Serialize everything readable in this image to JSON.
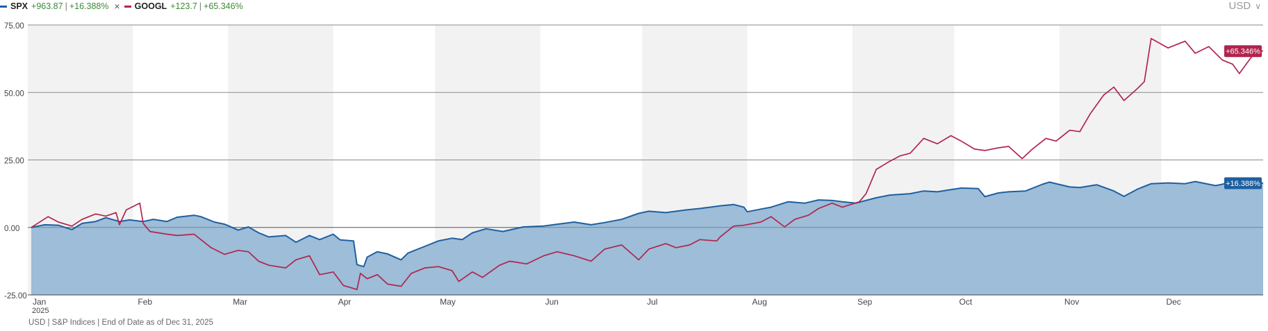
{
  "legend": {
    "items": [
      {
        "symbol": "SPX",
        "value": "+963.87",
        "pct": "+16.388%",
        "color": "#1e5fa0"
      },
      {
        "symbol": "GOOGL",
        "value": "+123.7",
        "pct": "+65.346%",
        "color": "#b1244d"
      }
    ],
    "separator": "|",
    "remove_icon": "close-icon"
  },
  "currency": {
    "label": "USD",
    "icon": "chevron-down-icon"
  },
  "footnote": "USD | S&P Indices | End of Date as of Dec 31, 2025",
  "chart_data": {
    "type": "area",
    "x_labels": [
      "Jan",
      "Feb",
      "Mar",
      "Apr",
      "May",
      "Jun",
      "Jul",
      "Aug",
      "Sep",
      "Oct",
      "Nov",
      "Dec"
    ],
    "x_sublabel": "2025",
    "y_ticks": [
      "75.00",
      "50.00",
      "25.00",
      "0.00",
      "-25.00"
    ],
    "ylim": [
      -25,
      75
    ],
    "units": "percent change",
    "series": [
      {
        "name": "SPX",
        "style": "area",
        "color": "#1e5fa0",
        "fill": "#98b9d6",
        "end_label": "+16.388%",
        "points": [
          [
            "2025-01-02",
            0
          ],
          [
            "2025-01-06",
            1.0
          ],
          [
            "2025-01-10",
            0.8
          ],
          [
            "2025-01-14",
            -0.8
          ],
          [
            "2025-01-17",
            1.5
          ],
          [
            "2025-01-21",
            2.2
          ],
          [
            "2025-01-24",
            3.6
          ],
          [
            "2025-01-28",
            2.2
          ],
          [
            "2025-01-31",
            2.8
          ],
          [
            "2025-02-04",
            2.2
          ],
          [
            "2025-02-07",
            3.0
          ],
          [
            "2025-02-11",
            2.2
          ],
          [
            "2025-02-14",
            3.8
          ],
          [
            "2025-02-19",
            4.5
          ],
          [
            "2025-02-21",
            4.0
          ],
          [
            "2025-02-25",
            2.0
          ],
          [
            "2025-02-28",
            1.2
          ],
          [
            "2025-03-04",
            -1.0
          ],
          [
            "2025-03-07",
            0.2
          ],
          [
            "2025-03-10",
            -2.0
          ],
          [
            "2025-03-13",
            -3.5
          ],
          [
            "2025-03-18",
            -3.0
          ],
          [
            "2025-03-21",
            -5.5
          ],
          [
            "2025-03-25",
            -3.0
          ],
          [
            "2025-03-28",
            -4.5
          ],
          [
            "2025-04-01",
            -2.5
          ],
          [
            "2025-04-03",
            -4.6
          ],
          [
            "2025-04-07",
            -5.0
          ],
          [
            "2025-04-08",
            -13.8
          ],
          [
            "2025-04-10",
            -14.5
          ],
          [
            "2025-04-11",
            -11.0
          ],
          [
            "2025-04-14",
            -9.0
          ],
          [
            "2025-04-17",
            -9.8
          ],
          [
            "2025-04-21",
            -12.0
          ],
          [
            "2025-04-23",
            -9.5
          ],
          [
            "2025-04-28",
            -7.0
          ],
          [
            "2025-05-02",
            -5.0
          ],
          [
            "2025-05-06",
            -4.0
          ],
          [
            "2025-05-09",
            -4.5
          ],
          [
            "2025-05-12",
            -2.0
          ],
          [
            "2025-05-16",
            -0.5
          ],
          [
            "2025-05-21",
            -1.5
          ],
          [
            "2025-05-27",
            0.2
          ],
          [
            "2025-06-02",
            0.5
          ],
          [
            "2025-06-06",
            1.2
          ],
          [
            "2025-06-11",
            2.0
          ],
          [
            "2025-06-16",
            1.0
          ],
          [
            "2025-06-20",
            1.8
          ],
          [
            "2025-06-25",
            3.0
          ],
          [
            "2025-06-30",
            5.2
          ],
          [
            "2025-07-03",
            6.0
          ],
          [
            "2025-07-08",
            5.5
          ],
          [
            "2025-07-14",
            6.5
          ],
          [
            "2025-07-18",
            7.0
          ],
          [
            "2025-07-24",
            8.0
          ],
          [
            "2025-07-28",
            8.5
          ],
          [
            "2025-07-31",
            7.5
          ],
          [
            "2025-08-01",
            5.8
          ],
          [
            "2025-08-05",
            6.8
          ],
          [
            "2025-08-08",
            7.5
          ],
          [
            "2025-08-13",
            9.5
          ],
          [
            "2025-08-18",
            9.0
          ],
          [
            "2025-08-22",
            10.2
          ],
          [
            "2025-08-26",
            10.0
          ],
          [
            "2025-08-29",
            9.5
          ],
          [
            "2025-09-02",
            9.0
          ],
          [
            "2025-09-08",
            11.0
          ],
          [
            "2025-09-12",
            12.0
          ],
          [
            "2025-09-18",
            12.5
          ],
          [
            "2025-09-22",
            13.5
          ],
          [
            "2025-09-26",
            13.2
          ],
          [
            "2025-09-30",
            14.0
          ],
          [
            "2025-10-03",
            14.6
          ],
          [
            "2025-10-08",
            14.4
          ],
          [
            "2025-10-10",
            11.4
          ],
          [
            "2025-10-14",
            12.8
          ],
          [
            "2025-10-17",
            13.2
          ],
          [
            "2025-10-22",
            13.5
          ],
          [
            "2025-10-27",
            16.0
          ],
          [
            "2025-10-29",
            16.8
          ],
          [
            "2025-11-04",
            15.0
          ],
          [
            "2025-11-07",
            14.8
          ],
          [
            "2025-11-12",
            15.8
          ],
          [
            "2025-11-17",
            13.5
          ],
          [
            "2025-11-20",
            11.5
          ],
          [
            "2025-11-24",
            14.2
          ],
          [
            "2025-11-28",
            16.2
          ],
          [
            "2025-12-03",
            16.5
          ],
          [
            "2025-12-08",
            16.2
          ],
          [
            "2025-12-11",
            17.0
          ],
          [
            "2025-12-17",
            15.5
          ],
          [
            "2025-12-19",
            16.0
          ],
          [
            "2025-12-24",
            17.8
          ],
          [
            "2025-12-31",
            16.4
          ]
        ]
      },
      {
        "name": "GOOGL",
        "style": "line",
        "color": "#b1244d",
        "end_label": "+65.346%",
        "points": [
          [
            "2025-01-02",
            0
          ],
          [
            "2025-01-07",
            4.0
          ],
          [
            "2025-01-10",
            2.0
          ],
          [
            "2025-01-14",
            0.5
          ],
          [
            "2025-01-17",
            3.0
          ],
          [
            "2025-01-21",
            5.0
          ],
          [
            "2025-01-24",
            4.2
          ],
          [
            "2025-01-27",
            5.5
          ],
          [
            "2025-01-28",
            1.0
          ],
          [
            "2025-01-30",
            6.5
          ],
          [
            "2025-02-03",
            9.0
          ],
          [
            "2025-02-04",
            1.5
          ],
          [
            "2025-02-06",
            -1.5
          ],
          [
            "2025-02-11",
            -2.5
          ],
          [
            "2025-02-14",
            -3.0
          ],
          [
            "2025-02-19",
            -2.5
          ],
          [
            "2025-02-24",
            -7.5
          ],
          [
            "2025-02-28",
            -10.0
          ],
          [
            "2025-03-04",
            -8.5
          ],
          [
            "2025-03-07",
            -9.0
          ],
          [
            "2025-03-10",
            -12.5
          ],
          [
            "2025-03-13",
            -14.0
          ],
          [
            "2025-03-18",
            -15.0
          ],
          [
            "2025-03-21",
            -12.0
          ],
          [
            "2025-03-25",
            -10.5
          ],
          [
            "2025-03-28",
            -17.5
          ],
          [
            "2025-04-01",
            -16.5
          ],
          [
            "2025-04-04",
            -21.5
          ],
          [
            "2025-04-08",
            -23.0
          ],
          [
            "2025-04-09",
            -17.0
          ],
          [
            "2025-04-11",
            -19.0
          ],
          [
            "2025-04-14",
            -17.5
          ],
          [
            "2025-04-17",
            -21.0
          ],
          [
            "2025-04-21",
            -21.8
          ],
          [
            "2025-04-24",
            -17.0
          ],
          [
            "2025-04-28",
            -15.0
          ],
          [
            "2025-05-02",
            -14.5
          ],
          [
            "2025-05-06",
            -16.0
          ],
          [
            "2025-05-08",
            -20.0
          ],
          [
            "2025-05-12",
            -16.5
          ],
          [
            "2025-05-15",
            -18.5
          ],
          [
            "2025-05-20",
            -14.0
          ],
          [
            "2025-05-23",
            -12.5
          ],
          [
            "2025-05-28",
            -13.5
          ],
          [
            "2025-06-02",
            -10.5
          ],
          [
            "2025-06-06",
            -9.0
          ],
          [
            "2025-06-11",
            -10.5
          ],
          [
            "2025-06-16",
            -12.5
          ],
          [
            "2025-06-20",
            -8.0
          ],
          [
            "2025-06-25",
            -6.5
          ],
          [
            "2025-06-30",
            -12.0
          ],
          [
            "2025-07-03",
            -8.0
          ],
          [
            "2025-07-08",
            -6.0
          ],
          [
            "2025-07-11",
            -7.5
          ],
          [
            "2025-07-15",
            -6.5
          ],
          [
            "2025-07-18",
            -4.5
          ],
          [
            "2025-07-23",
            -5.0
          ],
          [
            "2025-07-24",
            -3.5
          ],
          [
            "2025-07-28",
            0.5
          ],
          [
            "2025-07-31",
            0.8
          ],
          [
            "2025-08-05",
            2.0
          ],
          [
            "2025-08-08",
            4.0
          ],
          [
            "2025-08-12",
            0.2
          ],
          [
            "2025-08-15",
            3.0
          ],
          [
            "2025-08-19",
            4.5
          ],
          [
            "2025-08-22",
            7.0
          ],
          [
            "2025-08-26",
            9.0
          ],
          [
            "2025-08-29",
            7.5
          ],
          [
            "2025-09-03",
            9.5
          ],
          [
            "2025-09-05",
            12.5
          ],
          [
            "2025-09-08",
            21.5
          ],
          [
            "2025-09-12",
            24.5
          ],
          [
            "2025-09-15",
            26.5
          ],
          [
            "2025-09-18",
            27.5
          ],
          [
            "2025-09-22",
            33.0
          ],
          [
            "2025-09-26",
            31.0
          ],
          [
            "2025-09-30",
            34.0
          ],
          [
            "2025-10-03",
            32.0
          ],
          [
            "2025-10-07",
            29.0
          ],
          [
            "2025-10-10",
            28.5
          ],
          [
            "2025-10-14",
            29.5
          ],
          [
            "2025-10-17",
            30.0
          ],
          [
            "2025-10-21",
            25.5
          ],
          [
            "2025-10-24",
            29.0
          ],
          [
            "2025-10-28",
            33.0
          ],
          [
            "2025-10-31",
            32.0
          ],
          [
            "2025-11-04",
            36.0
          ],
          [
            "2025-11-07",
            35.5
          ],
          [
            "2025-11-10",
            42.0
          ],
          [
            "2025-11-14",
            49.0
          ],
          [
            "2025-11-17",
            52.0
          ],
          [
            "2025-11-20",
            47.0
          ],
          [
            "2025-11-24",
            51.5
          ],
          [
            "2025-11-26",
            54.0
          ],
          [
            "2025-11-28",
            70.0
          ],
          [
            "2025-12-03",
            66.5
          ],
          [
            "2025-12-08",
            69.0
          ],
          [
            "2025-12-11",
            64.5
          ],
          [
            "2025-12-15",
            67.0
          ],
          [
            "2025-12-19",
            62.0
          ],
          [
            "2025-12-22",
            60.5
          ],
          [
            "2025-12-24",
            57.0
          ],
          [
            "2025-12-26",
            60.5
          ],
          [
            "2025-12-29",
            65.5
          ],
          [
            "2025-12-31",
            65.3
          ]
        ]
      }
    ],
    "grid": true,
    "shaded_bands": "alternate months"
  }
}
